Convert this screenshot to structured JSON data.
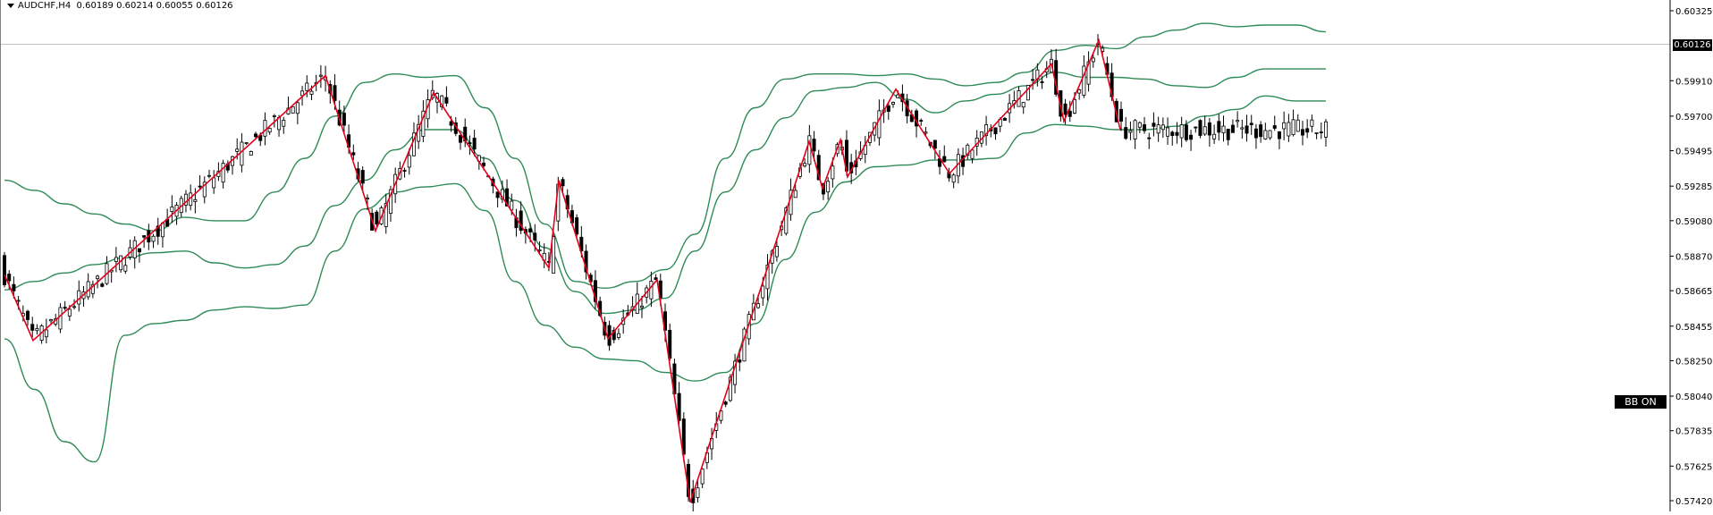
{
  "header": {
    "symbol": "AUDCHF,H4",
    "open": "0.60189",
    "high": "0.60214",
    "low": "0.60055",
    "close": "0.60126"
  },
  "current_price_label": "0.60126",
  "bb_button_label": "BB ON",
  "colors": {
    "background": "#ffffff",
    "candle": "#000000",
    "bollinger": "#2e8b57",
    "zigzag": "#e3001b",
    "price_line": "#c0c0c0"
  },
  "chart_data": {
    "type": "candlestick",
    "symbol": "AUDCHF",
    "timeframe": "H4",
    "ylim": [
      0.5733,
      0.6043
    ],
    "y_ticks": [
      "0.60325",
      "0.59910",
      "0.59700",
      "0.59495",
      "0.59285",
      "0.59080",
      "0.58870",
      "0.58665",
      "0.58455",
      "0.58250",
      "0.58040",
      "0.57835",
      "0.57625",
      "0.57420"
    ],
    "current_price": 0.60126,
    "bar_count": 285,
    "candles_ohlc": [],
    "bollinger_upper": [
      0.5932,
      0.5926,
      0.5918,
      0.5912,
      0.5906,
      0.5902,
      0.591,
      0.5908,
      0.5908,
      0.5925,
      0.5945,
      0.597,
      0.599,
      0.5995,
      0.5993,
      0.5994,
      0.5975,
      0.5945,
      0.5906,
      0.5872,
      0.5868,
      0.5872,
      0.5879,
      0.59,
      0.5945,
      0.5975,
      0.5992,
      0.5995,
      0.5995,
      0.5994,
      0.5995,
      0.5992,
      0.5988,
      0.599,
      0.5996,
      0.6009,
      0.6012,
      0.601,
      0.6017,
      0.6021,
      0.6025,
      0.6023,
      0.6024,
      0.6024,
      0.602
    ],
    "bollinger_mid": [
      0.5867,
      0.5872,
      0.5877,
      0.5882,
      0.5886,
      0.5889,
      0.589,
      0.5883,
      0.588,
      0.5882,
      0.5893,
      0.5917,
      0.5932,
      0.595,
      0.5962,
      0.5962,
      0.5945,
      0.592,
      0.5892,
      0.5866,
      0.5853,
      0.5855,
      0.5862,
      0.589,
      0.5925,
      0.595,
      0.5969,
      0.5985,
      0.5987,
      0.599,
      0.598,
      0.5972,
      0.5979,
      0.5983,
      0.5988,
      0.5996,
      0.5993,
      0.5993,
      0.5992,
      0.5988,
      0.5987,
      0.5993,
      0.5998,
      0.5998,
      0.5998
    ],
    "bollinger_lower": [
      0.5838,
      0.5808,
      0.5777,
      0.5765,
      0.584,
      0.5847,
      0.5849,
      0.5855,
      0.5857,
      0.5856,
      0.5858,
      0.589,
      0.5915,
      0.5925,
      0.5928,
      0.593,
      0.5914,
      0.5872,
      0.5846,
      0.5833,
      0.5826,
      0.5825,
      0.5818,
      0.5813,
      0.5818,
      0.5847,
      0.5885,
      0.5913,
      0.5931,
      0.594,
      0.5941,
      0.5944,
      0.5944,
      0.5945,
      0.596,
      0.5965,
      0.5964,
      0.5962,
      0.5962,
      0.5964,
      0.597,
      0.5974,
      0.5982,
      0.5979,
      0.5979
    ],
    "zigzag": [
      0.5876,
      0.5837,
      0.5994,
      0.5902,
      0.5984,
      0.588,
      0.5932,
      0.5838,
      0.5873,
      0.5741,
      0.5955,
      0.5927,
      0.5956,
      0.5934,
      0.5986,
      0.5936,
      0.6001,
      0.5967,
      0.6015,
      0.5962
    ]
  }
}
